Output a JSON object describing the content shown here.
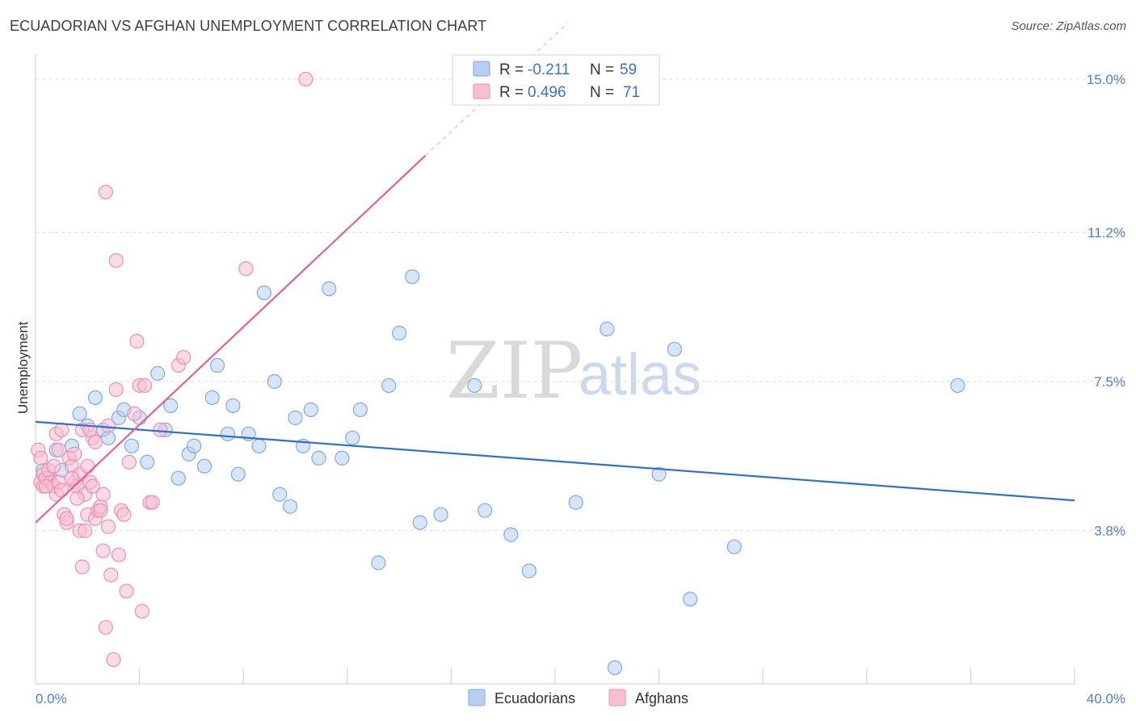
{
  "header": {
    "title": "ECUADORIAN VS AFGHAN UNEMPLOYMENT CORRELATION CHART",
    "source": "Source: ZipAtlas.com"
  },
  "watermark": {
    "zip": "ZIP",
    "atlas": "atlas"
  },
  "legend_top": {
    "rows": [
      {
        "r_label": "R =",
        "r_value": "-0.211",
        "n_label": "N =",
        "n_value": "59",
        "color": "#a9c8f0"
      },
      {
        "r_label": "R =",
        "r_value": "0.496",
        "n_label": "N =",
        "n_value": "71",
        "color": "#f7b8cc"
      }
    ]
  },
  "chart_data": {
    "type": "scatter",
    "title": "ECUADORIAN VS AFGHAN UNEMPLOYMENT CORRELATION CHART",
    "xlabel": "",
    "ylabel": "Unemployment",
    "xlim": [
      0,
      40
    ],
    "ylim": [
      0,
      15.4
    ],
    "x_tick_labels": [
      "0.0%",
      "40.0%"
    ],
    "y_ticks": [
      3.8,
      7.5,
      11.2,
      15.0
    ],
    "y_tick_labels": [
      "3.8%",
      "7.5%",
      "11.2%",
      "15.0%"
    ],
    "grid": true,
    "series": [
      {
        "name": "Ecuadorians",
        "color": "#7eaae6",
        "fill": "#b7d0f2",
        "trend": {
          "x": [
            0,
            40
          ],
          "y": [
            6.5,
            4.55
          ]
        },
        "points": [
          [
            0.3,
            5.3
          ],
          [
            0.5,
            5.1
          ],
          [
            0.8,
            5.8
          ],
          [
            1.0,
            5.3
          ],
          [
            1.4,
            5.9
          ],
          [
            1.7,
            6.7
          ],
          [
            2.0,
            6.4
          ],
          [
            2.3,
            7.1
          ],
          [
            2.6,
            6.3
          ],
          [
            2.8,
            6.1
          ],
          [
            3.2,
            6.6
          ],
          [
            3.4,
            6.8
          ],
          [
            3.7,
            5.9
          ],
          [
            4.0,
            6.6
          ],
          [
            4.3,
            5.5
          ],
          [
            4.7,
            7.7
          ],
          [
            5.0,
            6.3
          ],
          [
            5.2,
            6.9
          ],
          [
            5.5,
            5.1
          ],
          [
            5.9,
            5.7
          ],
          [
            6.1,
            5.9
          ],
          [
            6.5,
            5.4
          ],
          [
            6.8,
            7.1
          ],
          [
            7.0,
            7.9
          ],
          [
            7.4,
            6.2
          ],
          [
            7.6,
            6.9
          ],
          [
            7.8,
            5.2
          ],
          [
            8.2,
            6.2
          ],
          [
            8.6,
            5.9
          ],
          [
            8.8,
            9.7
          ],
          [
            9.2,
            7.5
          ],
          [
            9.4,
            4.7
          ],
          [
            9.8,
            4.4
          ],
          [
            10.0,
            6.6
          ],
          [
            10.3,
            5.9
          ],
          [
            10.6,
            6.8
          ],
          [
            10.9,
            5.6
          ],
          [
            11.3,
            9.8
          ],
          [
            11.8,
            5.6
          ],
          [
            12.2,
            6.1
          ],
          [
            12.5,
            6.8
          ],
          [
            13.2,
            3.0
          ],
          [
            13.6,
            7.4
          ],
          [
            14.0,
            8.7
          ],
          [
            14.5,
            10.1
          ],
          [
            14.8,
            4.0
          ],
          [
            15.6,
            4.2
          ],
          [
            16.9,
            7.4
          ],
          [
            17.3,
            4.3
          ],
          [
            18.3,
            3.7
          ],
          [
            19.0,
            2.8
          ],
          [
            20.8,
            4.5
          ],
          [
            22.0,
            8.8
          ],
          [
            22.3,
            0.4
          ],
          [
            24.0,
            5.2
          ],
          [
            24.6,
            8.3
          ],
          [
            25.2,
            2.1
          ],
          [
            26.9,
            3.4
          ],
          [
            35.5,
            7.4
          ]
        ]
      },
      {
        "name": "Afghans",
        "color": "#ee8fb0",
        "fill": "#f7bfd1",
        "trend": {
          "x": [
            0,
            15.0
          ],
          "y": [
            4.0,
            13.1
          ]
        },
        "trend_dashed": {
          "x": [
            15.0,
            20.5
          ],
          "y": [
            13.1,
            16.4
          ]
        },
        "points": [
          [
            0.1,
            5.8
          ],
          [
            0.2,
            5.0
          ],
          [
            0.3,
            4.9
          ],
          [
            0.3,
            5.2
          ],
          [
            0.4,
            5.1
          ],
          [
            0.5,
            5.3
          ],
          [
            0.6,
            5.0
          ],
          [
            0.7,
            4.9
          ],
          [
            0.8,
            4.7
          ],
          [
            0.8,
            6.2
          ],
          [
            0.9,
            5.0
          ],
          [
            1.0,
            4.8
          ],
          [
            1.0,
            6.3
          ],
          [
            1.1,
            4.2
          ],
          [
            1.2,
            4.0
          ],
          [
            1.3,
            5.6
          ],
          [
            1.4,
            5.4
          ],
          [
            1.5,
            5.0
          ],
          [
            1.5,
            5.7
          ],
          [
            1.6,
            4.9
          ],
          [
            1.7,
            3.8
          ],
          [
            1.7,
            5.2
          ],
          [
            1.8,
            2.9
          ],
          [
            1.8,
            6.3
          ],
          [
            1.9,
            3.8
          ],
          [
            1.9,
            4.7
          ],
          [
            2.0,
            4.2
          ],
          [
            2.0,
            5.4
          ],
          [
            2.1,
            5.0
          ],
          [
            2.2,
            4.9
          ],
          [
            2.2,
            6.1
          ],
          [
            2.3,
            4.1
          ],
          [
            2.3,
            6.0
          ],
          [
            2.4,
            4.3
          ],
          [
            2.5,
            4.4
          ],
          [
            2.6,
            3.3
          ],
          [
            2.6,
            4.7
          ],
          [
            2.7,
            1.4
          ],
          [
            2.7,
            12.2
          ],
          [
            2.8,
            3.9
          ],
          [
            2.8,
            6.4
          ],
          [
            2.9,
            2.7
          ],
          [
            3.0,
            0.6
          ],
          [
            3.1,
            7.3
          ],
          [
            3.1,
            10.5
          ],
          [
            3.2,
            3.2
          ],
          [
            3.3,
            4.3
          ],
          [
            3.4,
            4.2
          ],
          [
            3.5,
            2.3
          ],
          [
            3.6,
            5.5
          ],
          [
            3.8,
            6.7
          ],
          [
            3.9,
            8.5
          ],
          [
            4.0,
            7.4
          ],
          [
            4.1,
            1.8
          ],
          [
            4.2,
            7.4
          ],
          [
            4.4,
            4.5
          ],
          [
            4.5,
            4.5
          ],
          [
            4.8,
            6.3
          ],
          [
            5.5,
            7.9
          ],
          [
            5.7,
            8.1
          ],
          [
            8.1,
            10.3
          ],
          [
            10.4,
            15.0
          ],
          [
            0.2,
            5.6
          ],
          [
            0.4,
            4.9
          ],
          [
            0.7,
            5.4
          ],
          [
            1.2,
            4.1
          ],
          [
            2.5,
            4.3
          ],
          [
            1.6,
            4.6
          ],
          [
            0.9,
            5.8
          ],
          [
            2.1,
            6.3
          ],
          [
            1.4,
            5.1
          ]
        ]
      }
    ]
  },
  "legend_bottom": {
    "items": [
      {
        "label": "Ecuadorians",
        "color": "#b7d0f2",
        "border": "#7eaae6"
      },
      {
        "label": "Afghans",
        "color": "#f7bfd1",
        "border": "#ee8fb0"
      }
    ]
  }
}
